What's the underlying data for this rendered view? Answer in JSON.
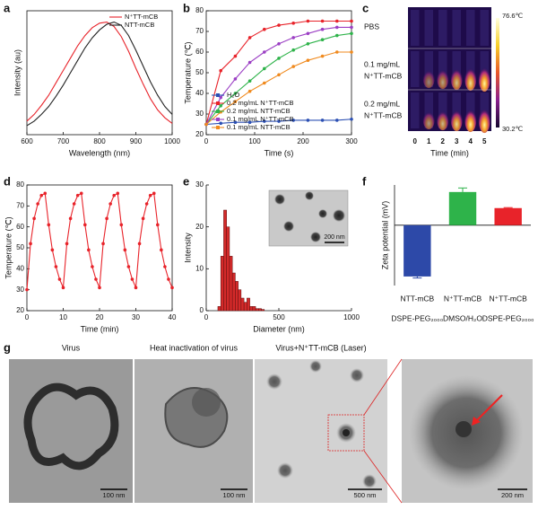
{
  "panel_labels": [
    "a",
    "b",
    "c",
    "d",
    "e",
    "f",
    "g"
  ],
  "chart_data": [
    {
      "type": "line",
      "xlabel": "Wavelength (nm)",
      "ylabel": "Intensity (au)",
      "x": [
        600,
        620,
        640,
        660,
        680,
        700,
        720,
        740,
        760,
        780,
        800,
        820,
        840,
        860,
        880,
        900,
        920,
        940,
        960,
        980,
        1000
      ],
      "xlim": [
        600,
        1000
      ],
      "xticks": [
        600,
        700,
        800,
        900,
        1000
      ],
      "ylim": [
        0,
        1.1
      ],
      "legend": "upper right",
      "markers": false,
      "series": [
        {
          "name": "N⁺TT-mCB",
          "color": "#e8232a",
          "values": [
            0.12,
            0.18,
            0.26,
            0.35,
            0.46,
            0.57,
            0.68,
            0.79,
            0.88,
            0.95,
            0.99,
            1.0,
            0.96,
            0.87,
            0.74,
            0.59,
            0.45,
            0.32,
            0.22,
            0.15,
            0.1
          ]
        },
        {
          "name": "NTT-mCB",
          "color": "#222222",
          "values": [
            0.08,
            0.12,
            0.18,
            0.25,
            0.34,
            0.44,
            0.55,
            0.66,
            0.77,
            0.86,
            0.93,
            0.98,
            1.0,
            0.97,
            0.88,
            0.75,
            0.61,
            0.47,
            0.35,
            0.25,
            0.18
          ]
        }
      ]
    },
    {
      "type": "line",
      "xlabel": "Time (s)",
      "ylabel": "Temperature (℃)",
      "x": [
        0,
        30,
        60,
        90,
        120,
        150,
        180,
        210,
        240,
        270,
        300
      ],
      "xlim": [
        0,
        300
      ],
      "xticks": [
        0,
        100,
        200,
        300
      ],
      "ylim": [
        20,
        80
      ],
      "yticks": [
        20,
        30,
        40,
        50,
        60,
        70,
        80
      ],
      "legend": "lower right",
      "markers": true,
      "series": [
        {
          "name": "H₂O",
          "color": "#2b4fb3",
          "values": [
            25,
            25.5,
            26,
            26,
            26.5,
            26.5,
            27,
            27,
            27,
            27,
            27.5
          ]
        },
        {
          "name": "0.2 mg/mL N⁺TT-mCB",
          "color": "#e8232a",
          "values": [
            25,
            51,
            58,
            67,
            71,
            73,
            74,
            75,
            75,
            75,
            75
          ]
        },
        {
          "name": "0.2 mg/mL NTT-mCB",
          "color": "#2eb34a",
          "values": [
            25,
            34,
            40,
            46,
            52,
            57,
            61,
            64,
            66,
            68,
            69
          ]
        },
        {
          "name": "0.1 mg/mL N⁺TT-mCB",
          "color": "#9b3fc4",
          "values": [
            25,
            38,
            47,
            55,
            60,
            64,
            67,
            69,
            71,
            72,
            72
          ]
        },
        {
          "name": "0.1 mg/mL NTT-mCB",
          "color": "#f08a1e",
          "values": [
            25,
            31,
            36,
            41,
            45,
            49,
            53,
            56,
            58,
            60,
            60
          ]
        }
      ]
    },
    {
      "type": "line",
      "xlabel": "Time (min)",
      "ylabel": "Temperature (℃)",
      "x": [
        0,
        1,
        2,
        3,
        4,
        5,
        6,
        7,
        8,
        9,
        10,
        11,
        12,
        13,
        14,
        15,
        16,
        17,
        18,
        19,
        20,
        21,
        22,
        23,
        24,
        25,
        26,
        27,
        28,
        29,
        30,
        31,
        32,
        33,
        34,
        35,
        36,
        37,
        38,
        39,
        40
      ],
      "xlim": [
        0,
        40
      ],
      "xticks": [
        0,
        10,
        20,
        30,
        40
      ],
      "ylim": [
        20,
        80
      ],
      "yticks": [
        20,
        30,
        40,
        50,
        60,
        70,
        80
      ],
      "markers": true,
      "series": [
        {
          "color": "#e8232a",
          "values": [
            30,
            52,
            64,
            71,
            75,
            76,
            61,
            49,
            41,
            35,
            31,
            52,
            64,
            71,
            75,
            76,
            61,
            49,
            41,
            35,
            31,
            52,
            64,
            71,
            75,
            76,
            61,
            49,
            41,
            35,
            31,
            52,
            64,
            71,
            75,
            76,
            61,
            49,
            41,
            35,
            31
          ]
        }
      ]
    },
    {
      "type": "histogram",
      "xlabel": "Diameter (nm)",
      "ylabel": "Intensity",
      "bins": [
        80,
        100,
        120,
        140,
        160,
        180,
        200,
        220,
        240,
        260,
        280,
        300,
        320,
        340,
        360,
        380,
        400
      ],
      "values": [
        1,
        13,
        24,
        20,
        13,
        9,
        7,
        5,
        3,
        2,
        3,
        1,
        1,
        0.5,
        0.5,
        0.3
      ],
      "color": "#d42a2a",
      "xlim": [
        0,
        1000
      ],
      "xticks": [
        0,
        500,
        1000
      ],
      "ylim": [
        0,
        30
      ],
      "yticks": [
        0,
        10,
        20,
        30
      ],
      "inset_scale_label": "200 nm"
    },
    {
      "type": "bar",
      "ylabel": "Zeta potential (mV)",
      "categories": [
        "NTT-mCB",
        "N⁺TT-mCB",
        "N⁺TT-mCB"
      ],
      "category_sublabels": [
        "DSPE-PEG₂₀₀₀",
        "DMSO/H₂O",
        "DSPE-PEG₂₀₀₀"
      ],
      "values": [
        -51,
        33,
        17
      ],
      "errors": [
        1.5,
        4,
        0.5
      ],
      "colors": [
        "#2d49a8",
        "#2eb34a",
        "#e8232a"
      ],
      "ylim": [
        -60,
        40
      ]
    }
  ],
  "thermal_panel": {
    "scale_max": "76.6℃",
    "scale_min": "30.2℃",
    "row_labels": [
      "PBS",
      "0.1 mg/mL",
      "N⁺TT-mCB",
      "0.2 mg/mL",
      "N⁺TT-mCB"
    ],
    "x_ticks": [
      "0",
      "1",
      "2",
      "3",
      "4",
      "5"
    ],
    "xlabel": "Time (min)"
  },
  "tem_panel": {
    "titles": [
      "Virus",
      "Heat inactivation of virus",
      "Virus+N⁺TT-mCB (Laser)"
    ],
    "scale_bars": [
      "100 nm",
      "100 nm",
      "500 nm",
      "200 nm"
    ]
  }
}
